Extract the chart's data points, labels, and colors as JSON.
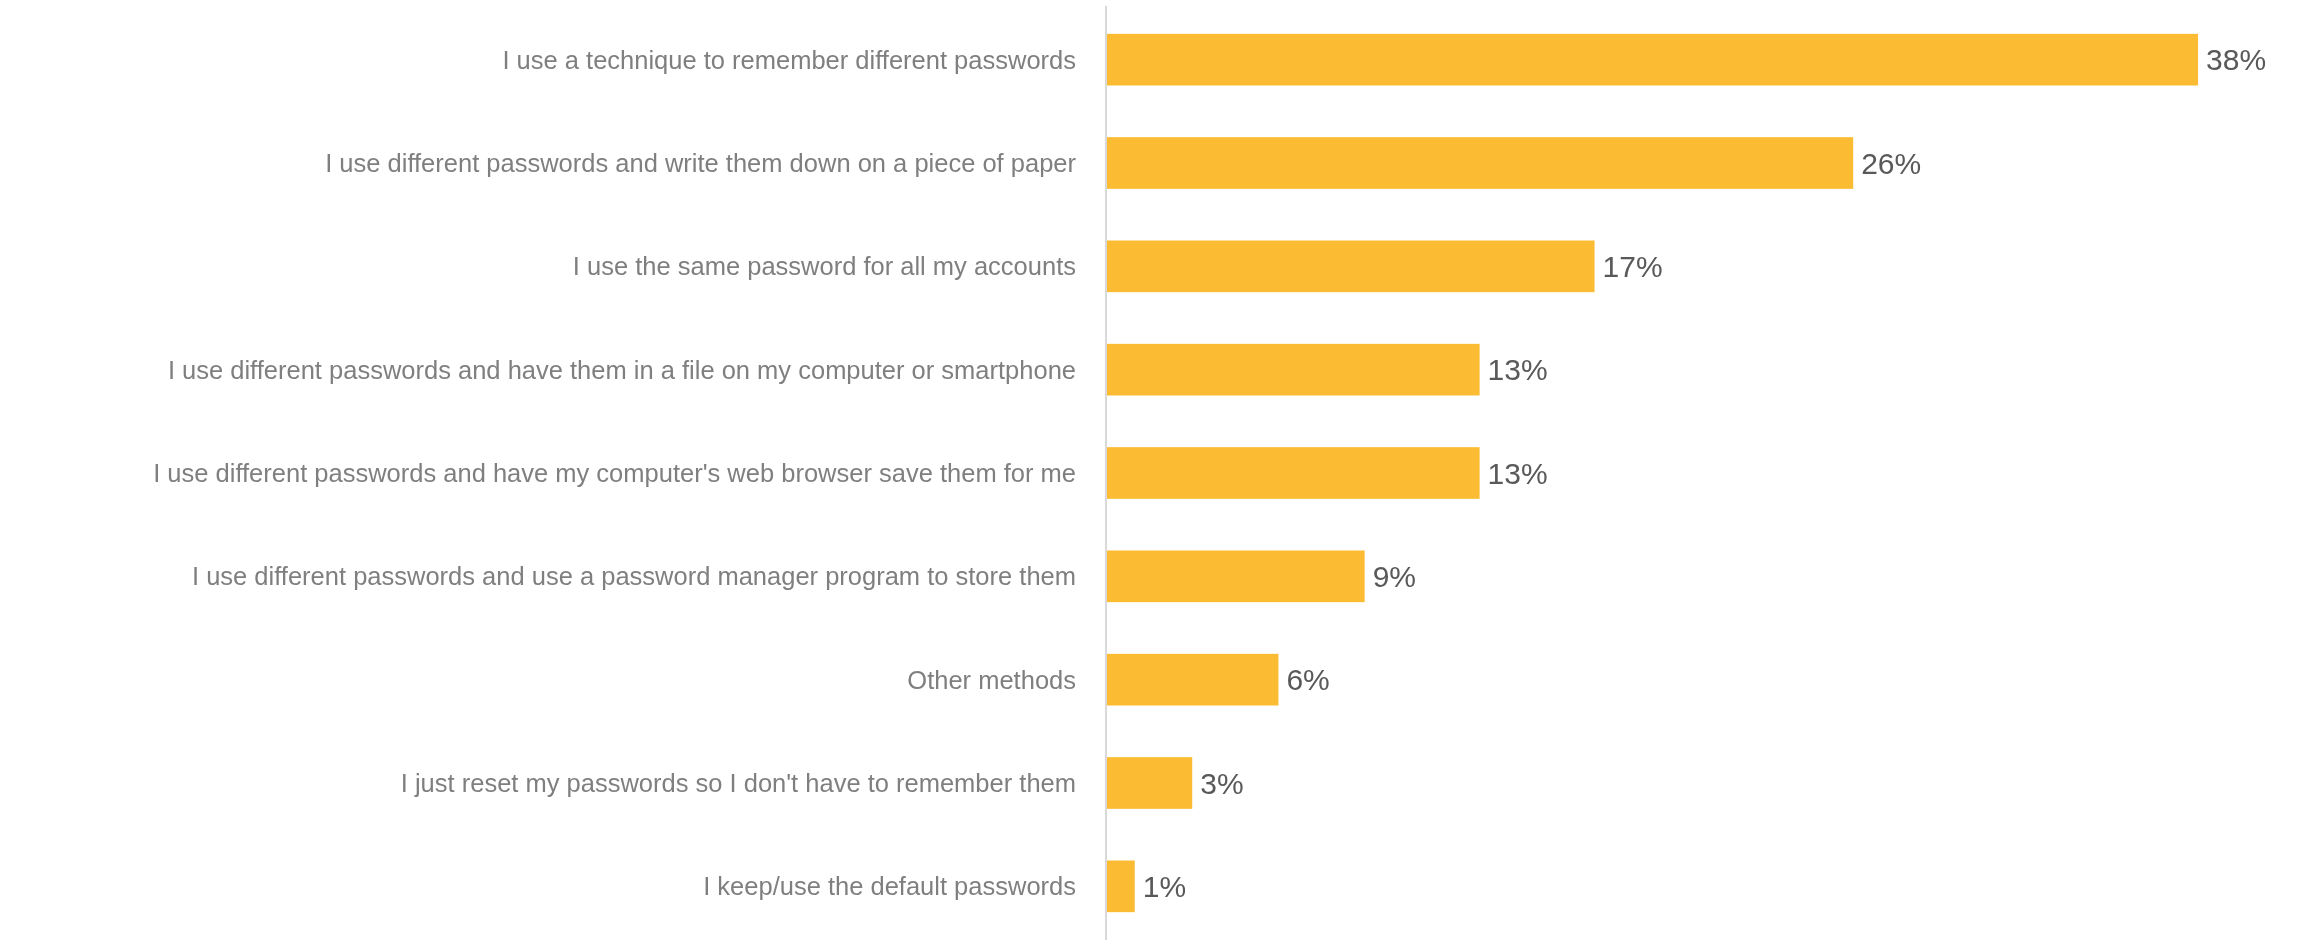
{
  "chart_data": {
    "type": "bar",
    "orientation": "horizontal",
    "color": "#fbbc33",
    "value_labels": [
      "38%",
      "26%",
      "17%",
      "13%",
      "13%",
      "9%",
      "6%",
      "3%",
      "1%"
    ],
    "categories": [
      "I use a technique to remember different passwords",
      "I use different passwords and write them down on a piece of paper",
      "I use the same password for all my accounts",
      "I use different passwords and have them in a file on my computer or smartphone",
      "I use different passwords and have my computer's web browser save them for me",
      "I use different passwords and use a password manager program to store them",
      "Other methods",
      "I just reset my passwords so I don't have to remember them",
      "I keep/use the default passwords"
    ],
    "values": [
      38,
      26,
      17,
      13,
      13,
      9,
      6,
      3,
      1
    ]
  }
}
